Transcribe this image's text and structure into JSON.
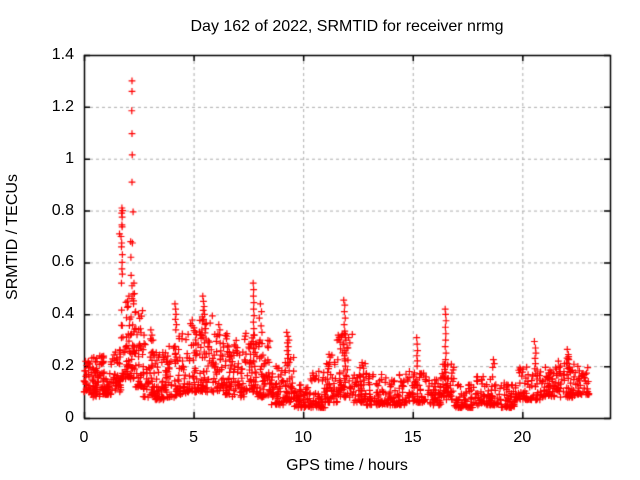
{
  "chart_data": {
    "type": "scatter",
    "title": "Day 162 of 2022, SRMTID for receiver nrmg",
    "xlabel": "GPS time / hours",
    "ylabel": "SRMTID / TECUs",
    "xlim": [
      0,
      24
    ],
    "ylim": [
      0,
      1.4
    ],
    "xticks": {
      "values": [
        0,
        5,
        10,
        15,
        20
      ],
      "labels": [
        "0",
        "5",
        "10",
        "15",
        "20"
      ]
    },
    "yticks": {
      "values": [
        0,
        0.2,
        0.4,
        0.6,
        0.8,
        1.0,
        1.2,
        1.4
      ],
      "labels": [
        "0",
        "0.2",
        "0.4",
        "0.6",
        "0.8",
        "1",
        "1.2",
        "1.4"
      ]
    },
    "grid": true,
    "legend": "none",
    "marker": "+",
    "marker_color": "#ff0000",
    "axis_color": "#000000",
    "grid_color": "#adadad",
    "seed": 2022162,
    "description": "Dense red plus-marker scatter: baseline 0.05-0.25 TECUs all day, large spike to 1.3 at ~2.2 h, secondary peaks ~0.8 at 1.75 h, ~0.5 at 5.5 and 7.75 h, ~0.45 at 11.9 h, ~0.42 at 16.5 h, quiet dips near 10-11 h and 17-19.5 h, data ends ~23 h",
    "peak_points": [
      [
        1.62,
        0.71
      ],
      [
        1.69,
        0.7
      ],
      [
        1.71,
        0.66
      ],
      [
        1.73,
        0.81
      ],
      [
        1.76,
        0.8
      ],
      [
        1.72,
        0.79
      ],
      [
        1.74,
        0.775
      ],
      [
        1.73,
        0.745
      ],
      [
        1.74,
        0.737
      ],
      [
        1.72,
        0.675
      ],
      [
        1.75,
        0.63
      ],
      [
        1.74,
        0.6
      ],
      [
        1.73,
        0.575
      ],
      [
        1.75,
        0.555
      ],
      [
        1.71,
        0.52
      ],
      [
        2.19,
        1.3
      ],
      [
        2.19,
        1.26
      ],
      [
        2.18,
        1.185
      ],
      [
        2.19,
        1.097
      ],
      [
        2.2,
        1.015
      ],
      [
        2.19,
        0.91
      ],
      [
        2.24,
        0.795
      ],
      [
        2.21,
        0.675
      ],
      [
        2.13,
        0.68
      ],
      [
        2.14,
        0.62
      ],
      [
        2.15,
        0.55
      ],
      [
        2.19,
        0.51
      ],
      [
        2.05,
        0.47
      ],
      [
        2.28,
        0.52
      ],
      [
        2.3,
        0.48
      ],
      [
        2.26,
        0.44
      ],
      [
        3.05,
        0.34
      ],
      [
        3.1,
        0.32
      ],
      [
        3.15,
        0.3
      ],
      [
        4.15,
        0.44
      ],
      [
        4.18,
        0.42
      ],
      [
        4.2,
        0.4
      ],
      [
        4.17,
        0.38
      ],
      [
        4.22,
        0.36
      ],
      [
        4.19,
        0.34
      ],
      [
        5.42,
        0.47
      ],
      [
        5.45,
        0.45
      ],
      [
        5.48,
        0.43
      ],
      [
        5.44,
        0.415
      ],
      [
        5.5,
        0.4
      ],
      [
        5.46,
        0.38
      ],
      [
        5.52,
        0.36
      ],
      [
        5.55,
        0.345
      ],
      [
        6.15,
        0.36
      ],
      [
        6.2,
        0.34
      ],
      [
        6.18,
        0.32
      ],
      [
        7.72,
        0.52
      ],
      [
        7.74,
        0.495
      ],
      [
        7.73,
        0.47
      ],
      [
        7.75,
        0.445
      ],
      [
        7.74,
        0.42
      ],
      [
        7.76,
        0.395
      ],
      [
        7.73,
        0.37
      ],
      [
        7.75,
        0.345
      ],
      [
        7.74,
        0.32
      ],
      [
        7.72,
        0.295
      ],
      [
        7.76,
        0.27
      ],
      [
        7.75,
        0.245
      ],
      [
        7.73,
        0.22
      ],
      [
        8.05,
        0.44
      ],
      [
        8.1,
        0.41
      ],
      [
        8.0,
        0.385
      ],
      [
        8.08,
        0.355
      ],
      [
        8.12,
        0.33
      ],
      [
        8.03,
        0.3
      ],
      [
        9.25,
        0.33
      ],
      [
        9.3,
        0.315
      ],
      [
        9.35,
        0.3
      ],
      [
        9.28,
        0.29
      ],
      [
        9.32,
        0.275
      ],
      [
        9.27,
        0.26
      ],
      [
        9.33,
        0.245
      ],
      [
        9.29,
        0.23
      ],
      [
        11.55,
        0.3
      ],
      [
        11.6,
        0.32
      ],
      [
        11.85,
        0.455
      ],
      [
        11.9,
        0.435
      ],
      [
        11.88,
        0.41
      ],
      [
        11.92,
        0.385
      ],
      [
        11.87,
        0.36
      ],
      [
        11.9,
        0.335
      ],
      [
        11.93,
        0.31
      ],
      [
        11.86,
        0.285
      ],
      [
        11.9,
        0.26
      ],
      [
        11.88,
        0.24
      ],
      [
        11.91,
        0.22
      ],
      [
        11.95,
        0.3
      ],
      [
        12.0,
        0.27
      ],
      [
        15.18,
        0.31
      ],
      [
        15.2,
        0.285
      ],
      [
        15.22,
        0.26
      ],
      [
        15.19,
        0.24
      ],
      [
        15.21,
        0.22
      ],
      [
        15.2,
        0.2
      ],
      [
        16.48,
        0.42
      ],
      [
        16.5,
        0.4
      ],
      [
        16.52,
        0.375
      ],
      [
        16.49,
        0.35
      ],
      [
        16.51,
        0.325
      ],
      [
        16.5,
        0.3
      ],
      [
        16.48,
        0.275
      ],
      [
        16.52,
        0.25
      ],
      [
        16.5,
        0.225
      ],
      [
        16.49,
        0.2
      ],
      [
        16.51,
        0.175
      ],
      [
        16.5,
        0.15
      ],
      [
        16.53,
        0.125
      ],
      [
        16.47,
        0.105
      ],
      [
        18.68,
        0.225
      ],
      [
        18.72,
        0.21
      ],
      [
        18.65,
        0.195
      ],
      [
        20.55,
        0.295
      ],
      [
        20.6,
        0.27
      ],
      [
        20.62,
        0.25
      ],
      [
        20.58,
        0.23
      ],
      [
        20.6,
        0.21
      ],
      [
        20.57,
        0.19
      ],
      [
        20.61,
        0.17
      ],
      [
        22.05,
        0.265
      ],
      [
        22.1,
        0.245
      ],
      [
        22.12,
        0.225
      ],
      [
        22.08,
        0.21
      ],
      [
        22.15,
        0.195
      ],
      [
        22.2,
        0.18
      ]
    ],
    "noise_segments": [
      [
        0.0,
        0.3,
        0.1,
        0.22,
        30
      ],
      [
        0.3,
        0.8,
        0.08,
        0.24,
        50
      ],
      [
        0.8,
        1.3,
        0.09,
        0.24,
        55
      ],
      [
        1.3,
        1.7,
        0.1,
        0.3,
        40
      ],
      [
        1.7,
        2.3,
        0.15,
        0.5,
        70
      ],
      [
        2.3,
        2.7,
        0.12,
        0.42,
        45
      ],
      [
        2.7,
        3.2,
        0.08,
        0.32,
        50
      ],
      [
        3.2,
        3.7,
        0.07,
        0.26,
        45
      ],
      [
        3.7,
        4.2,
        0.08,
        0.28,
        45
      ],
      [
        4.2,
        4.7,
        0.09,
        0.33,
        45
      ],
      [
        4.7,
        5.3,
        0.1,
        0.38,
        55
      ],
      [
        5.3,
        6.0,
        0.1,
        0.4,
        65
      ],
      [
        6.0,
        6.6,
        0.09,
        0.33,
        55
      ],
      [
        6.6,
        7.3,
        0.08,
        0.3,
        60
      ],
      [
        7.3,
        7.9,
        0.1,
        0.33,
        55
      ],
      [
        7.9,
        8.5,
        0.08,
        0.3,
        55
      ],
      [
        8.5,
        9.1,
        0.05,
        0.2,
        50
      ],
      [
        9.1,
        9.6,
        0.06,
        0.24,
        45
      ],
      [
        9.6,
        10.3,
        0.04,
        0.13,
        55
      ],
      [
        10.3,
        11.0,
        0.04,
        0.18,
        55
      ],
      [
        11.0,
        11.6,
        0.06,
        0.25,
        50
      ],
      [
        11.6,
        12.3,
        0.08,
        0.33,
        60
      ],
      [
        12.3,
        12.9,
        0.06,
        0.22,
        50
      ],
      [
        12.9,
        13.8,
        0.05,
        0.17,
        65
      ],
      [
        13.8,
        14.8,
        0.05,
        0.17,
        70
      ],
      [
        14.8,
        15.6,
        0.06,
        0.18,
        55
      ],
      [
        15.6,
        16.3,
        0.05,
        0.16,
        50
      ],
      [
        16.3,
        16.9,
        0.07,
        0.22,
        45
      ],
      [
        16.9,
        17.8,
        0.04,
        0.13,
        60
      ],
      [
        17.8,
        18.9,
        0.05,
        0.17,
        70
      ],
      [
        18.9,
        19.8,
        0.04,
        0.14,
        60
      ],
      [
        19.8,
        20.9,
        0.07,
        0.2,
        70
      ],
      [
        20.9,
        21.6,
        0.08,
        0.2,
        50
      ],
      [
        21.6,
        22.5,
        0.08,
        0.24,
        60
      ],
      [
        22.5,
        23.05,
        0.09,
        0.2,
        40
      ]
    ]
  }
}
